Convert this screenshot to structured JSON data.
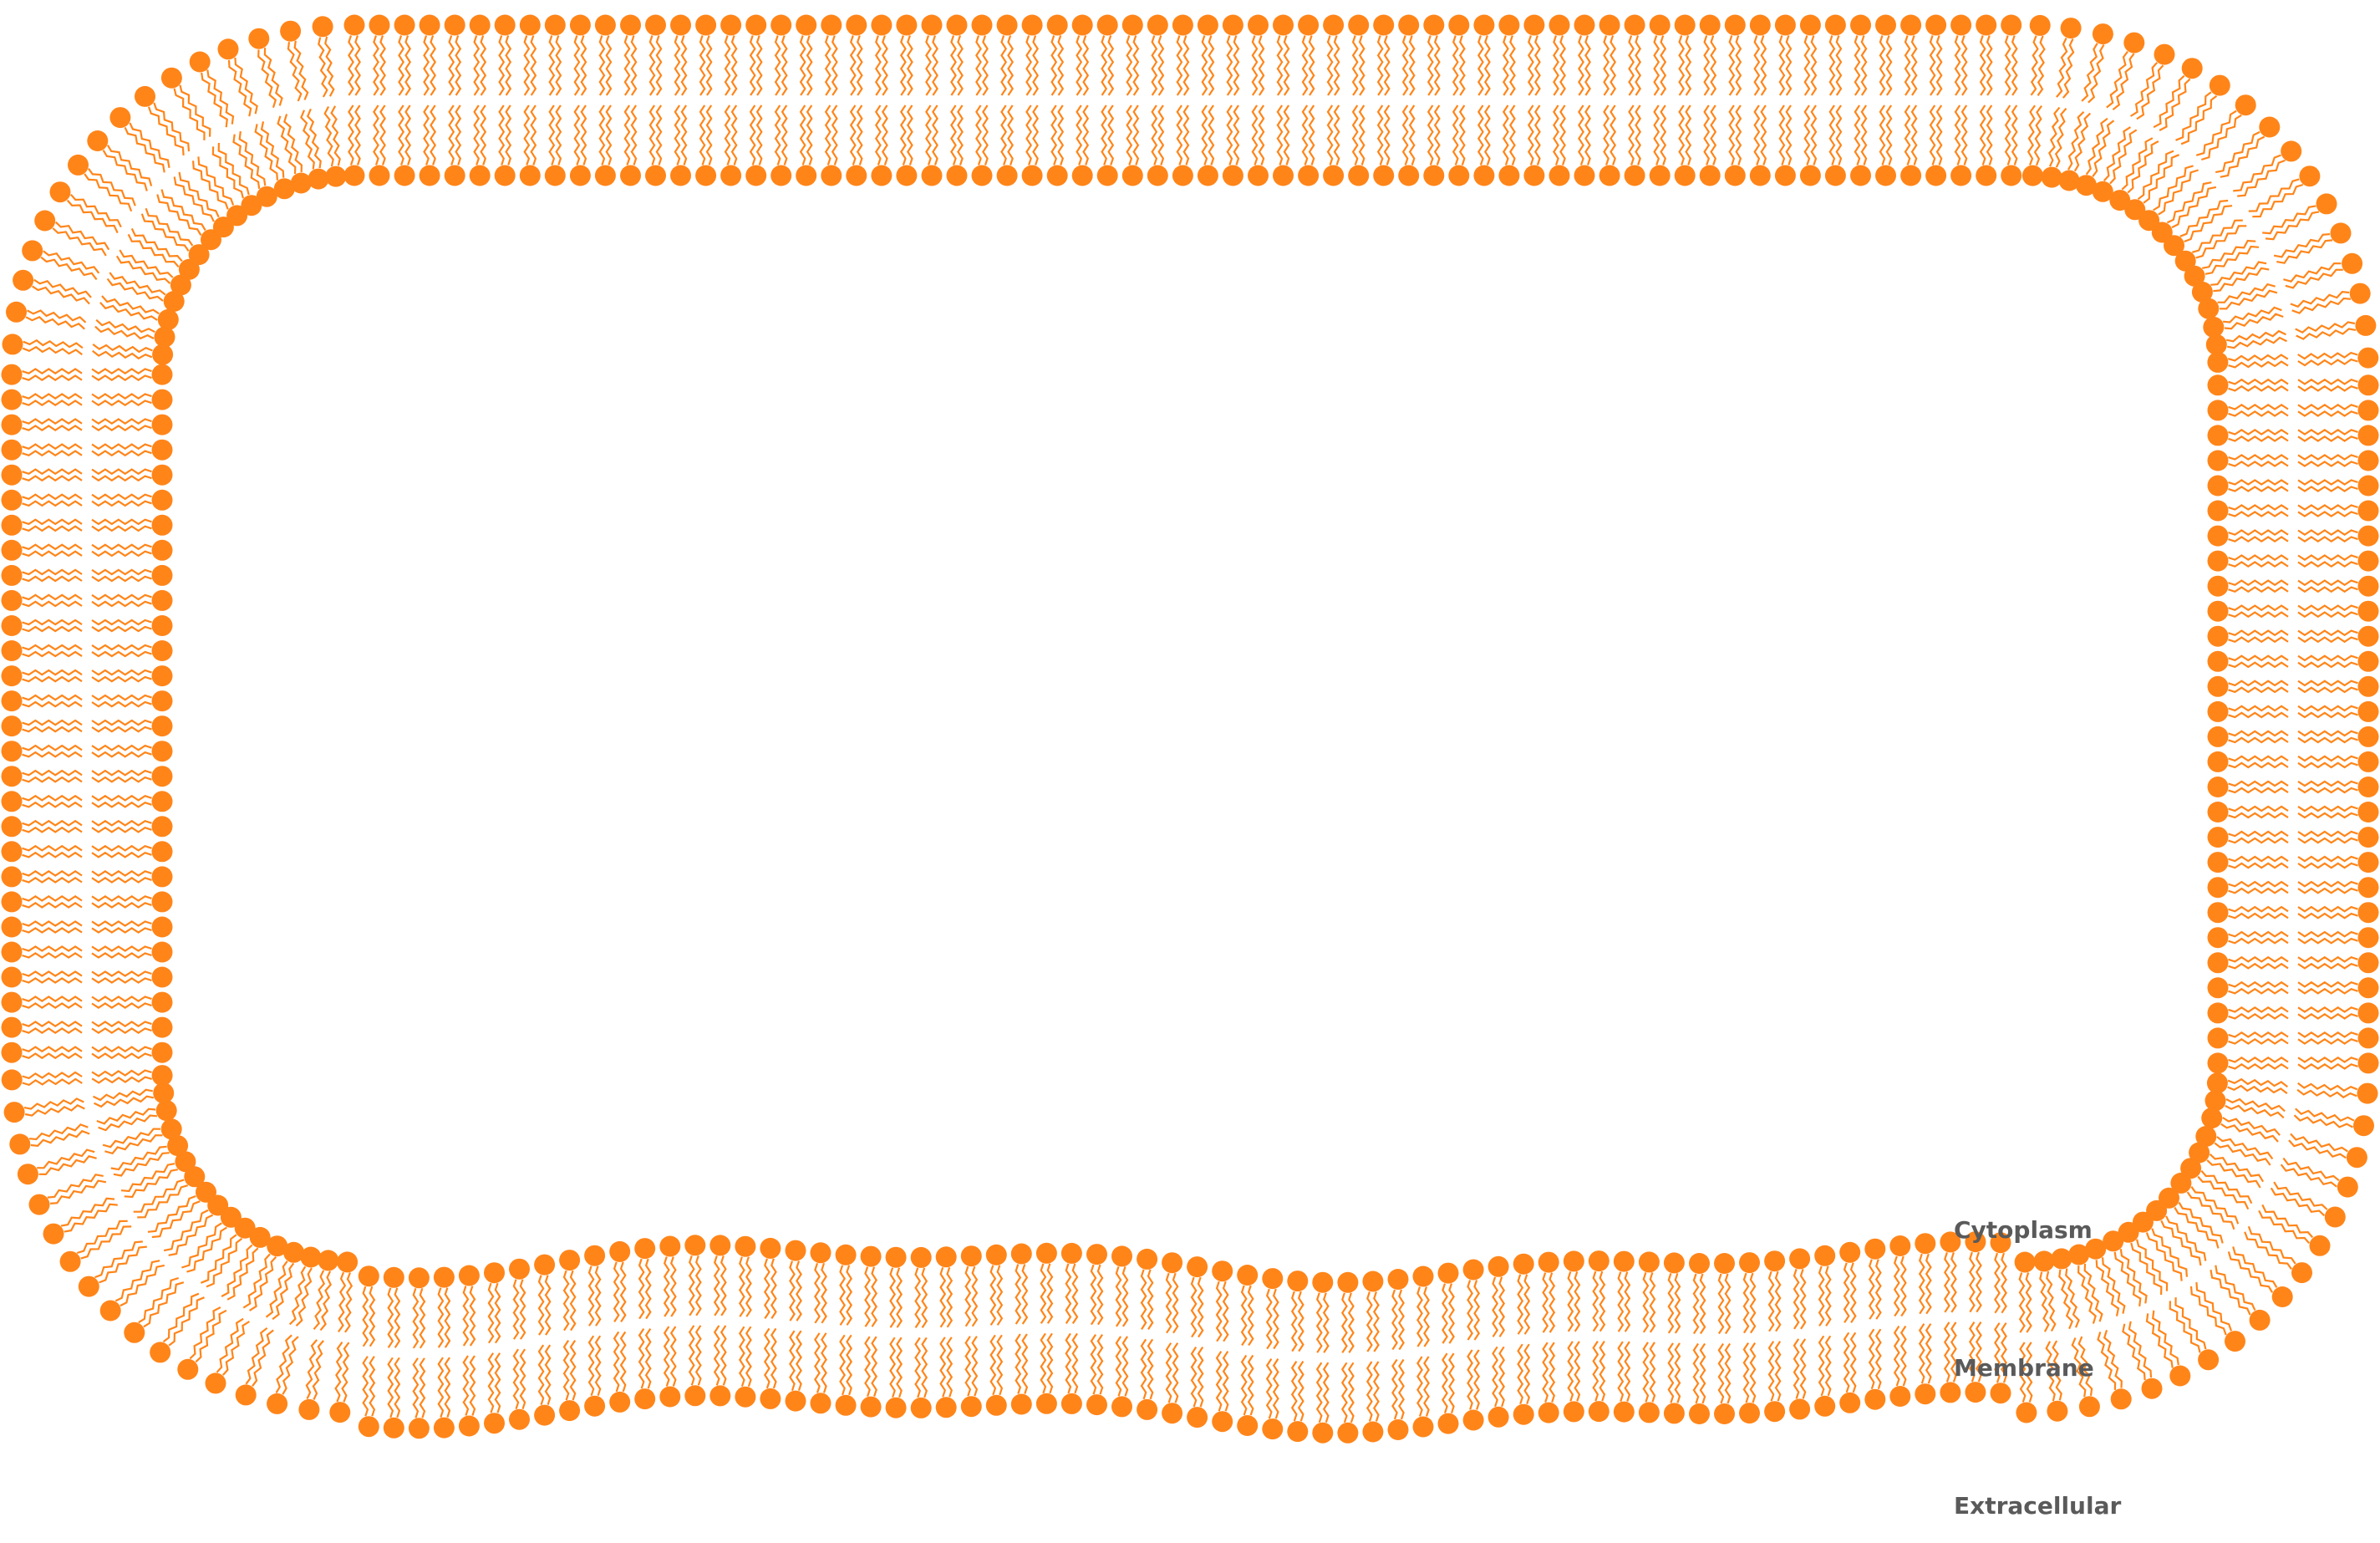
{
  "diagram": {
    "type": "lipid-bilayer-cell-membrane",
    "labels": {
      "cytoplasm": "Cytoplasm",
      "membrane": "Membrane",
      "extracellular": "Extracellular"
    },
    "colors": {
      "lipid": "#ff8519",
      "label_text": "#5a5a5a",
      "background": "#ffffff"
    }
  }
}
